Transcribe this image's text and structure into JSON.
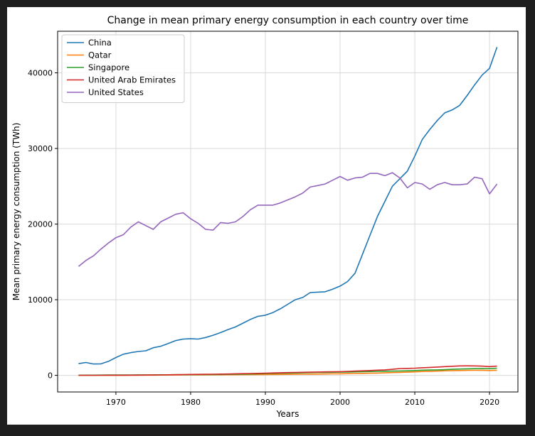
{
  "chart_data": {
    "type": "line",
    "title": "Change in mean primary energy consumption in each country over time",
    "xlabel": "Years",
    "ylabel": "Mean primary energy consumption (TWh)",
    "xlim": [
      1962.2,
      2023.8
    ],
    "ylim": [
      -2200,
      45500
    ],
    "xticks": [
      1970,
      1980,
      1990,
      2000,
      2010,
      2020
    ],
    "yticks": [
      0,
      10000,
      20000,
      30000,
      40000
    ],
    "grid": true,
    "legend": "top-left",
    "x": [
      1965,
      1966,
      1967,
      1968,
      1969,
      1970,
      1971,
      1972,
      1973,
      1974,
      1975,
      1976,
      1977,
      1978,
      1979,
      1980,
      1981,
      1982,
      1983,
      1984,
      1985,
      1986,
      1987,
      1988,
      1989,
      1990,
      1991,
      1992,
      1993,
      1994,
      1995,
      1996,
      1997,
      1998,
      1999,
      2000,
      2001,
      2002,
      2003,
      2004,
      2005,
      2006,
      2007,
      2008,
      2009,
      2010,
      2011,
      2012,
      2013,
      2014,
      2015,
      2016,
      2017,
      2018,
      2019,
      2020,
      2021
    ],
    "series": [
      {
        "name": "China",
        "color": "#1f77b4",
        "values": [
          1550,
          1700,
          1500,
          1520,
          1850,
          2350,
          2800,
          3000,
          3150,
          3250,
          3650,
          3850,
          4200,
          4600,
          4800,
          4850,
          4800,
          5000,
          5300,
          5650,
          6050,
          6400,
          6900,
          7400,
          7800,
          7950,
          8300,
          8800,
          9400,
          10000,
          10300,
          10950,
          11000,
          11050,
          11400,
          11800,
          12400,
          13500,
          16000,
          18500,
          21000,
          23000,
          25000,
          26000,
          27000,
          29000,
          31200,
          32500,
          33700,
          34700,
          35100,
          35700,
          37000,
          38400,
          39700,
          40600,
          43400
        ]
      },
      {
        "name": "Qatar",
        "color": "#ff7f0e",
        "values": [
          10,
          10,
          10,
          12,
          15,
          15,
          20,
          20,
          25,
          25,
          30,
          35,
          40,
          45,
          50,
          55,
          60,
          65,
          70,
          75,
          80,
          85,
          90,
          95,
          100,
          110,
          115,
          120,
          130,
          140,
          150,
          160,
          170,
          180,
          190,
          200,
          220,
          240,
          260,
          280,
          300,
          330,
          360,
          390,
          420,
          460,
          500,
          530,
          560,
          600,
          630,
          640,
          650,
          660,
          670,
          640,
          670
        ]
      },
      {
        "name": "Singapore",
        "color": "#2ca02c",
        "values": [
          20,
          25,
          30,
          35,
          40,
          45,
          50,
          55,
          60,
          62,
          65,
          70,
          75,
          80,
          85,
          90,
          95,
          100,
          110,
          120,
          130,
          140,
          160,
          180,
          200,
          230,
          260,
          280,
          300,
          320,
          340,
          360,
          380,
          390,
          400,
          420,
          440,
          460,
          480,
          500,
          520,
          540,
          560,
          580,
          600,
          640,
          680,
          700,
          720,
          750,
          800,
          830,
          860,
          880,
          900,
          880,
          950
        ]
      },
      {
        "name": "United Arab Emirates",
        "color": "#d62728",
        "values": [
          5,
          5,
          8,
          10,
          12,
          15,
          20,
          25,
          30,
          35,
          45,
          55,
          70,
          85,
          100,
          115,
          130,
          140,
          150,
          165,
          180,
          200,
          220,
          240,
          260,
          290,
          320,
          340,
          360,
          380,
          400,
          420,
          440,
          460,
          470,
          490,
          520,
          560,
          600,
          640,
          680,
          720,
          800,
          900,
          920,
          950,
          1000,
          1050,
          1100,
          1150,
          1200,
          1250,
          1260,
          1250,
          1220,
          1150,
          1220
        ]
      },
      {
        "name": "United States",
        "color": "#9467bd",
        "values": [
          14400,
          15200,
          15800,
          16700,
          17500,
          18200,
          18600,
          19600,
          20300,
          19800,
          19300,
          20300,
          20800,
          21300,
          21500,
          20700,
          20100,
          19300,
          19200,
          20200,
          20100,
          20300,
          21000,
          21900,
          22500,
          22500,
          22500,
          22800,
          23200,
          23600,
          24100,
          24900,
          25100,
          25300,
          25800,
          26300,
          25800,
          26100,
          26200,
          26700,
          26700,
          26400,
          26800,
          26100,
          24800,
          25500,
          25300,
          24600,
          25200,
          25500,
          25200,
          25200,
          25300,
          26200,
          26000,
          24000,
          25300
        ]
      }
    ]
  }
}
